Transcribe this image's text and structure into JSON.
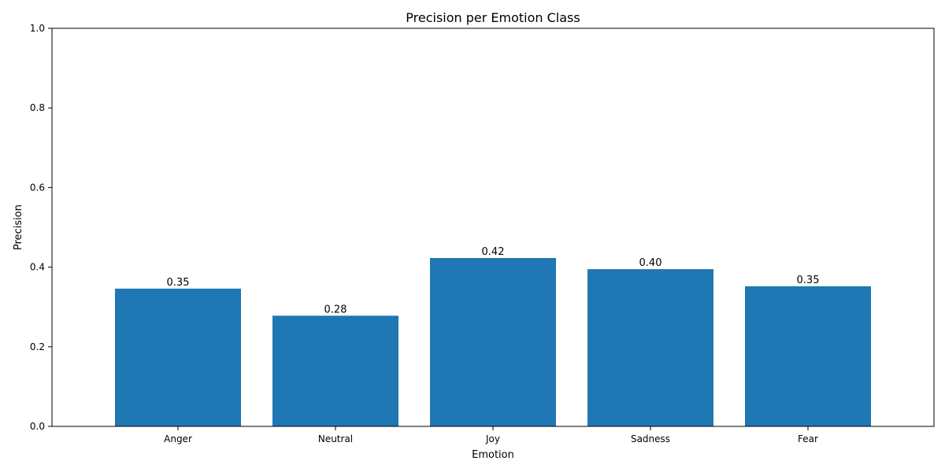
{
  "chart_data": {
    "type": "bar",
    "title": "Precision per Emotion Class",
    "xlabel": "Emotion",
    "ylabel": "Precision",
    "categories": [
      "Anger",
      "Neutral",
      "Joy",
      "Sadness",
      "Fear"
    ],
    "values": [
      0.346,
      0.278,
      0.423,
      0.395,
      0.352
    ],
    "value_labels": [
      "0.35",
      "0.28",
      "0.42",
      "0.40",
      "0.35"
    ],
    "yticks": [
      "0.0",
      "0.2",
      "0.4",
      "0.6",
      "0.8",
      "1.0"
    ],
    "ytick_values": [
      0,
      0.2,
      0.4,
      0.6,
      0.8,
      1.0
    ],
    "ylim": [
      0,
      1.0
    ],
    "grid": false,
    "bar_color": "#1f77b4"
  }
}
